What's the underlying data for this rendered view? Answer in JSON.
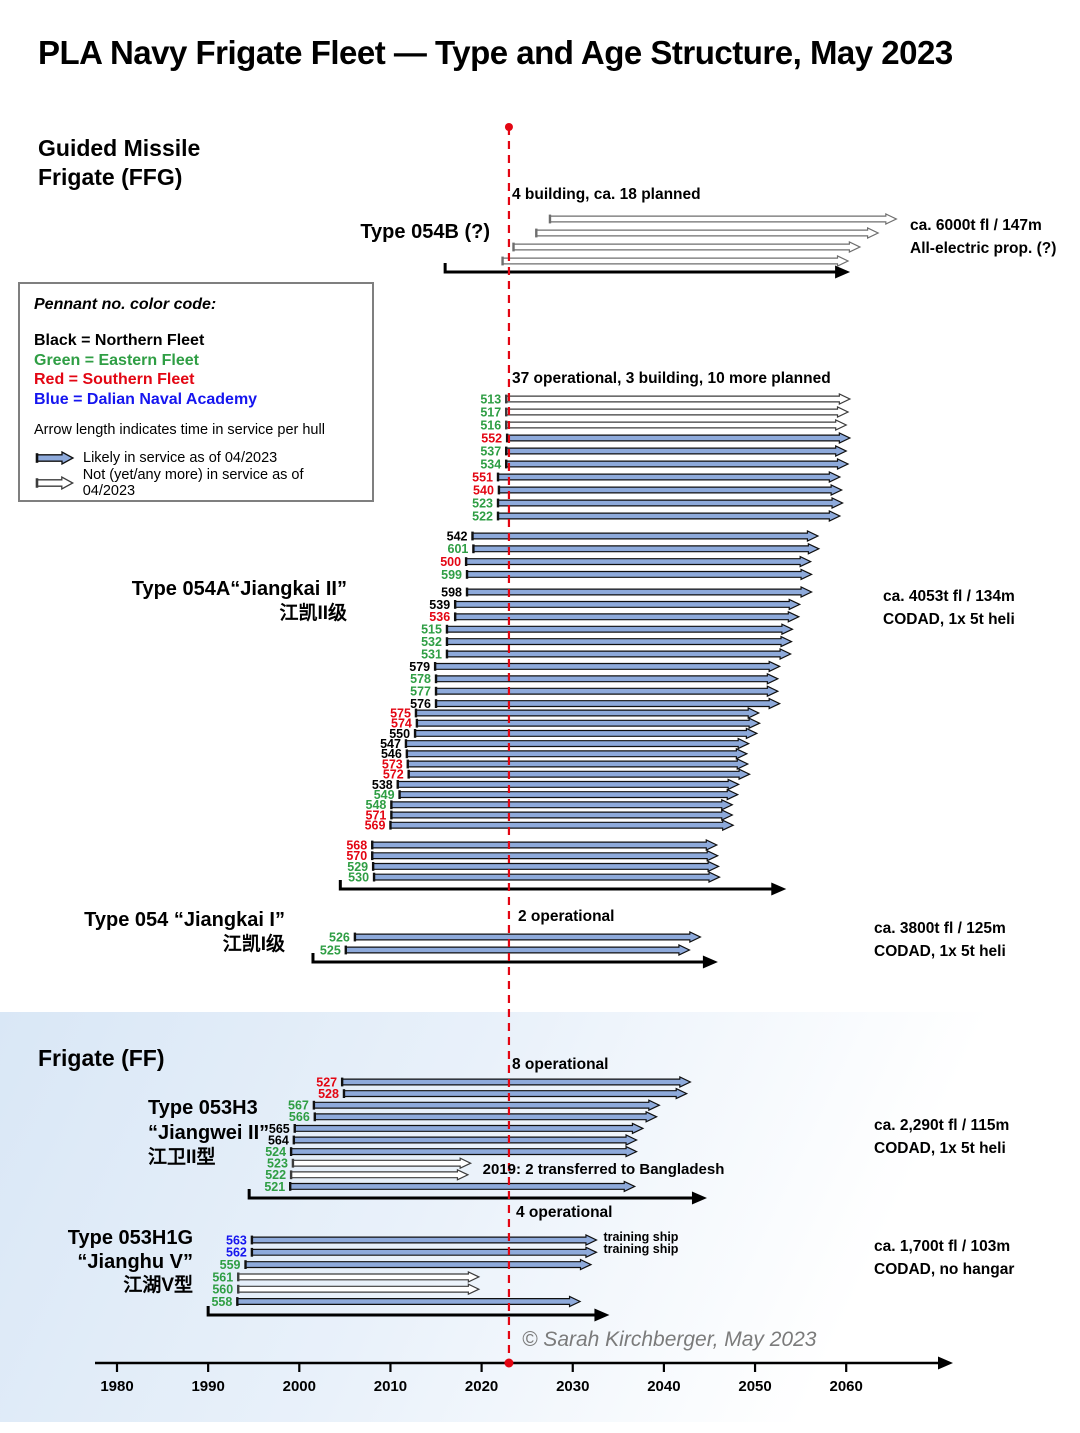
{
  "title": "PLA Navy Frigate Fleet — Type and Age Structure, May 2023",
  "headers": {
    "ffg_line1": "Guided Missile",
    "ffg_line2": "Frigate (FFG)",
    "ff": "Frigate (FF)"
  },
  "legend": {
    "heading": "Pennant no. color code:",
    "entries": [
      {
        "label": "Black = Northern Fleet",
        "color": "#000000"
      },
      {
        "label": "Green = Eastern Fleet",
        "color": "#2f9e44"
      },
      {
        "label": "Red = Southern Fleet",
        "color": "#e30613"
      },
      {
        "label": "Blue = Dalian Naval Academy",
        "color": "#1515ef"
      }
    ],
    "arrow_note": "Arrow length indicates time in service per hull",
    "in_service_label": "Likely in service as of 04/2023",
    "not_in_service_label": "Not (yet/any more) in service as of 04/2023"
  },
  "footer": "© Sarah Kirchberger, May 2023",
  "colors": {
    "arrow_fill": "#8eaadb",
    "arrow_stroke": "#101010",
    "white_arrow_fill": "#ffffff",
    "white_arrow_stroke": "#3c3c3c",
    "now_line": "#e30613",
    "black": "#000000",
    "green": "#2f9e44",
    "red": "#e30613",
    "blue": "#1515ef"
  },
  "chart_data": {
    "type": "timeline",
    "x_ticks": [
      1980,
      1990,
      2000,
      2010,
      2020,
      2030,
      2040,
      2050,
      2060
    ],
    "x_range": [
      1977,
      2070
    ],
    "now_marker_year": 2023,
    "groups": [
      {
        "id": "type-054b",
        "name_lines": [
          "Type 054B (?)"
        ],
        "annotation": "4 building, ca. 18 planned",
        "spec_lines": [
          "ca. 6000t fl / 147m",
          "All-electric prop. (?)"
        ],
        "baseline_years": [
          2016,
          2059
        ],
        "ships": [
          {
            "pennant": "",
            "fleet": "northern",
            "in_service": false,
            "start": 2027.5,
            "end": 2065.5
          },
          {
            "pennant": "",
            "fleet": "northern",
            "in_service": false,
            "start": 2026.0,
            "end": 2063.5
          },
          {
            "pennant": "",
            "fleet": "northern",
            "in_service": false,
            "start": 2023.5,
            "end": 2061.5
          },
          {
            "pennant": "",
            "fleet": "northern",
            "in_service": false,
            "start": 2022.3,
            "end": 2060.2
          }
        ]
      },
      {
        "id": "type-054a",
        "name_lines": [
          "Type 054A“Jiangkai II”",
          "江凯II级"
        ],
        "annotation": "37 operational, 3 building, 10 more planned",
        "spec_lines": [
          "ca. 4053t fl / 134m",
          "CODAD, 1x 5t heli"
        ],
        "baseline_years": [
          2004.5,
          2052
        ],
        "ships": [
          {
            "pennant": "513",
            "fleet": "eastern",
            "in_service": false,
            "start": 2022.7,
            "end": 2060.4
          },
          {
            "pennant": "517",
            "fleet": "eastern",
            "in_service": false,
            "start": 2022.7,
            "end": 2060.2
          },
          {
            "pennant": "516",
            "fleet": "eastern",
            "in_service": false,
            "start": 2022.7,
            "end": 2060.0
          },
          {
            "pennant": "552",
            "fleet": "southern",
            "in_service": true,
            "start": 2022.8,
            "end": 2060.4
          },
          {
            "pennant": "537",
            "fleet": "eastern",
            "in_service": true,
            "start": 2022.7,
            "end": 2060.0
          },
          {
            "pennant": "534",
            "fleet": "eastern",
            "in_service": true,
            "start": 2022.7,
            "end": 2060.2
          },
          {
            "pennant": "551",
            "fleet": "southern",
            "in_service": true,
            "start": 2021.8,
            "end": 2059.3
          },
          {
            "pennant": "540",
            "fleet": "southern",
            "in_service": true,
            "start": 2021.9,
            "end": 2059.5
          },
          {
            "pennant": "523",
            "fleet": "eastern",
            "in_service": true,
            "start": 2021.8,
            "end": 2059.6
          },
          {
            "pennant": "522",
            "fleet": "eastern",
            "in_service": true,
            "start": 2021.8,
            "end": 2059.3
          },
          {
            "pennant": "542",
            "fleet": "northern",
            "in_service": true,
            "start": 2019.0,
            "end": 2056.9
          },
          {
            "pennant": "601",
            "fleet": "eastern",
            "in_service": true,
            "start": 2019.1,
            "end": 2057.0
          },
          {
            "pennant": "500",
            "fleet": "southern",
            "in_service": true,
            "start": 2018.3,
            "end": 2056.1
          },
          {
            "pennant": "599",
            "fleet": "eastern",
            "in_service": true,
            "start": 2018.4,
            "end": 2056.2
          },
          {
            "pennant": "598",
            "fleet": "northern",
            "in_service": true,
            "start": 2018.4,
            "end": 2056.2
          },
          {
            "pennant": "539",
            "fleet": "northern",
            "in_service": true,
            "start": 2017.1,
            "end": 2054.9
          },
          {
            "pennant": "536",
            "fleet": "southern",
            "in_service": true,
            "start": 2017.1,
            "end": 2054.8
          },
          {
            "pennant": "515",
            "fleet": "eastern",
            "in_service": true,
            "start": 2016.2,
            "end": 2054.1
          },
          {
            "pennant": "532",
            "fleet": "eastern",
            "in_service": true,
            "start": 2016.2,
            "end": 2054.0
          },
          {
            "pennant": "531",
            "fleet": "eastern",
            "in_service": true,
            "start": 2016.2,
            "end": 2053.9
          },
          {
            "pennant": "579",
            "fleet": "northern",
            "in_service": true,
            "start": 2014.9,
            "end": 2052.7
          },
          {
            "pennant": "578",
            "fleet": "eastern",
            "in_service": true,
            "start": 2015.0,
            "end": 2052.5
          },
          {
            "pennant": "577",
            "fleet": "eastern",
            "in_service": true,
            "start": 2015.0,
            "end": 2052.5
          },
          {
            "pennant": "576",
            "fleet": "northern",
            "in_service": true,
            "start": 2015.0,
            "end": 2052.7
          },
          {
            "pennant": "575",
            "fleet": "southern",
            "in_service": true,
            "start": 2012.8,
            "end": 2050.4
          },
          {
            "pennant": "574",
            "fleet": "southern",
            "in_service": true,
            "start": 2012.9,
            "end": 2050.5
          },
          {
            "pennant": "550",
            "fleet": "northern",
            "in_service": true,
            "start": 2012.7,
            "end": 2050.2
          },
          {
            "pennant": "547",
            "fleet": "northern",
            "in_service": true,
            "start": 2011.7,
            "end": 2049.3
          },
          {
            "pennant": "546",
            "fleet": "northern",
            "in_service": true,
            "start": 2011.8,
            "end": 2049.1
          },
          {
            "pennant": "573",
            "fleet": "southern",
            "in_service": true,
            "start": 2011.9,
            "end": 2049.2
          },
          {
            "pennant": "572",
            "fleet": "southern",
            "in_service": true,
            "start": 2012.0,
            "end": 2049.4
          },
          {
            "pennant": "538",
            "fleet": "northern",
            "in_service": true,
            "start": 2010.8,
            "end": 2048.2
          },
          {
            "pennant": "549",
            "fleet": "eastern",
            "in_service": true,
            "start": 2011.0,
            "end": 2048.1
          },
          {
            "pennant": "548",
            "fleet": "eastern",
            "in_service": true,
            "start": 2010.1,
            "end": 2047.5
          },
          {
            "pennant": "571",
            "fleet": "southern",
            "in_service": true,
            "start": 2010.1,
            "end": 2047.5
          },
          {
            "pennant": "569",
            "fleet": "southern",
            "in_service": true,
            "start": 2010.0,
            "end": 2047.6
          },
          {
            "pennant": "568",
            "fleet": "southern",
            "in_service": true,
            "start": 2008.0,
            "end": 2045.8
          },
          {
            "pennant": "570",
            "fleet": "southern",
            "in_service": true,
            "start": 2008.0,
            "end": 2045.9
          },
          {
            "pennant": "529",
            "fleet": "eastern",
            "in_service": true,
            "start": 2008.1,
            "end": 2046.0
          },
          {
            "pennant": "530",
            "fleet": "eastern",
            "in_service": true,
            "start": 2008.2,
            "end": 2046.1
          }
        ]
      },
      {
        "id": "type-054",
        "name_lines": [
          "Type 054 “Jiangkai I”",
          "江凯I级"
        ],
        "annotation": "2 operational",
        "spec_lines": [
          "ca. 3800t fl / 125m",
          "CODAD, 1x 5t heli"
        ],
        "baseline_years": [
          2001.5,
          2044.5
        ],
        "ships": [
          {
            "pennant": "526",
            "fleet": "eastern",
            "in_service": true,
            "start": 2006.1,
            "end": 2044.0
          },
          {
            "pennant": "525",
            "fleet": "eastern",
            "in_service": true,
            "start": 2005.1,
            "end": 2042.8
          }
        ]
      },
      {
        "id": "type-053h3",
        "name_lines": [
          "Type 053H3",
          "“Jiangwei II”",
          "江卫II型"
        ],
        "annotation": "8 operational",
        "spec_lines": [
          "ca. 2,290t fl / 115m",
          "CODAD, 1x 5t heli"
        ],
        "baseline_years": [
          1994.5,
          2043.3
        ],
        "ships": [
          {
            "pennant": "527",
            "fleet": "southern",
            "in_service": true,
            "start": 2004.7,
            "end": 2042.9
          },
          {
            "pennant": "528",
            "fleet": "southern",
            "in_service": true,
            "start": 2004.9,
            "end": 2042.5
          },
          {
            "pennant": "567",
            "fleet": "eastern",
            "in_service": true,
            "start": 2001.6,
            "end": 2039.5
          },
          {
            "pennant": "566",
            "fleet": "eastern",
            "in_service": true,
            "start": 2001.7,
            "end": 2039.2
          },
          {
            "pennant": "565",
            "fleet": "northern",
            "in_service": true,
            "start": 1999.5,
            "end": 2037.7
          },
          {
            "pennant": "564",
            "fleet": "northern",
            "in_service": true,
            "start": 1999.4,
            "end": 2037.0
          },
          {
            "pennant": "524",
            "fleet": "eastern",
            "in_service": true,
            "start": 1999.1,
            "end": 2037.0
          },
          {
            "pennant": "523",
            "fleet": "eastern",
            "in_service": false,
            "start": 1999.3,
            "end": 2018.8,
            "note": "2019: 2 transferred to Bangladesh"
          },
          {
            "pennant": "522",
            "fleet": "eastern",
            "in_service": false,
            "start": 1999.1,
            "end": 2018.5
          },
          {
            "pennant": "521",
            "fleet": "eastern",
            "in_service": true,
            "start": 1999.0,
            "end": 2036.8
          }
        ]
      },
      {
        "id": "type-053h1g",
        "name_lines": [
          "Type 053H1G",
          "“Jianghu V”",
          "江湖V型"
        ],
        "annotation": "4 operational",
        "spec_lines": [
          "ca. 1,700t fl / 103m",
          "CODAD, no hangar"
        ],
        "baseline_years": [
          1990,
          2032.6
        ],
        "ships": [
          {
            "pennant": "563",
            "fleet": "dalian",
            "in_service": true,
            "start": 1994.8,
            "end": 2032.6,
            "note": "training ship"
          },
          {
            "pennant": "562",
            "fleet": "dalian",
            "in_service": true,
            "start": 1994.8,
            "end": 2032.6,
            "note": "training ship"
          },
          {
            "pennant": "559",
            "fleet": "eastern",
            "in_service": true,
            "start": 1994.1,
            "end": 2032.0
          },
          {
            "pennant": "561",
            "fleet": "eastern",
            "in_service": false,
            "start": 1993.3,
            "end": 2019.7
          },
          {
            "pennant": "560",
            "fleet": "eastern",
            "in_service": false,
            "start": 1993.3,
            "end": 2019.7
          },
          {
            "pennant": "558",
            "fleet": "eastern",
            "in_service": true,
            "start": 1993.2,
            "end": 2030.8
          }
        ]
      }
    ]
  }
}
